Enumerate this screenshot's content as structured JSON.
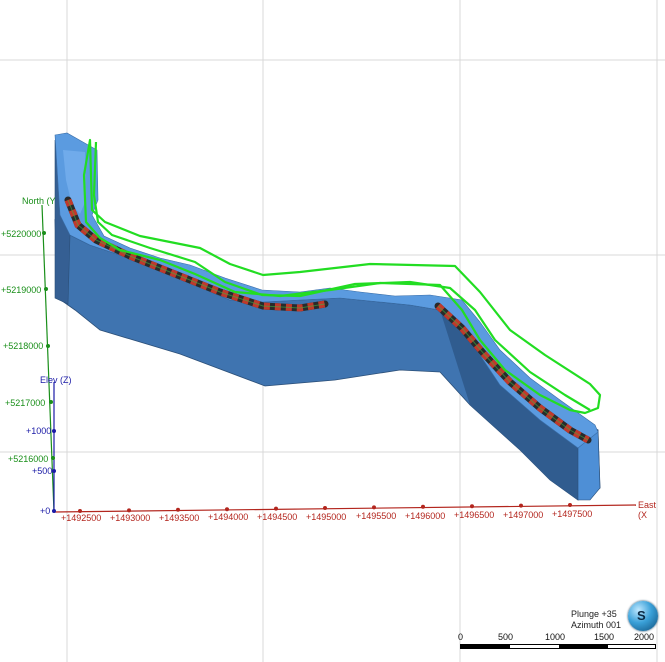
{
  "view": {
    "plunge_label": "Plunge +35",
    "azimuth_label": "Azimuth 001",
    "orientation_glyph": "S"
  },
  "axes": {
    "north": {
      "label": "North (Y",
      "ticks": [
        "+5220000",
        "+5219000",
        "+5218000",
        "+5217000",
        "+5216000"
      ],
      "color": "#1a8f1a"
    },
    "elev": {
      "label": "Elev (Z)",
      "ticks": [
        "+1000",
        "+500",
        "+0"
      ],
      "color": "#1a1aa6"
    },
    "east": {
      "label": "East (X",
      "ticks": [
        "+1492500",
        "+1493000",
        "+1493500",
        "+1494000",
        "+1494500",
        "+1495000",
        "+1495500",
        "+1496000",
        "+1496500",
        "+1497000",
        "+1497500"
      ],
      "color": "#b3261e"
    }
  },
  "scale_bar": {
    "labels": [
      "0",
      "500",
      "1000",
      "1500",
      "2000"
    ]
  },
  "colors": {
    "solid_top": "#4e8fd6",
    "solid_side": "#3c6fa8",
    "solid_dark": "#2b4f78",
    "outline": "#22dd22",
    "seam_red": "#c0392b",
    "seam_dark": "#2a2a2a"
  }
}
